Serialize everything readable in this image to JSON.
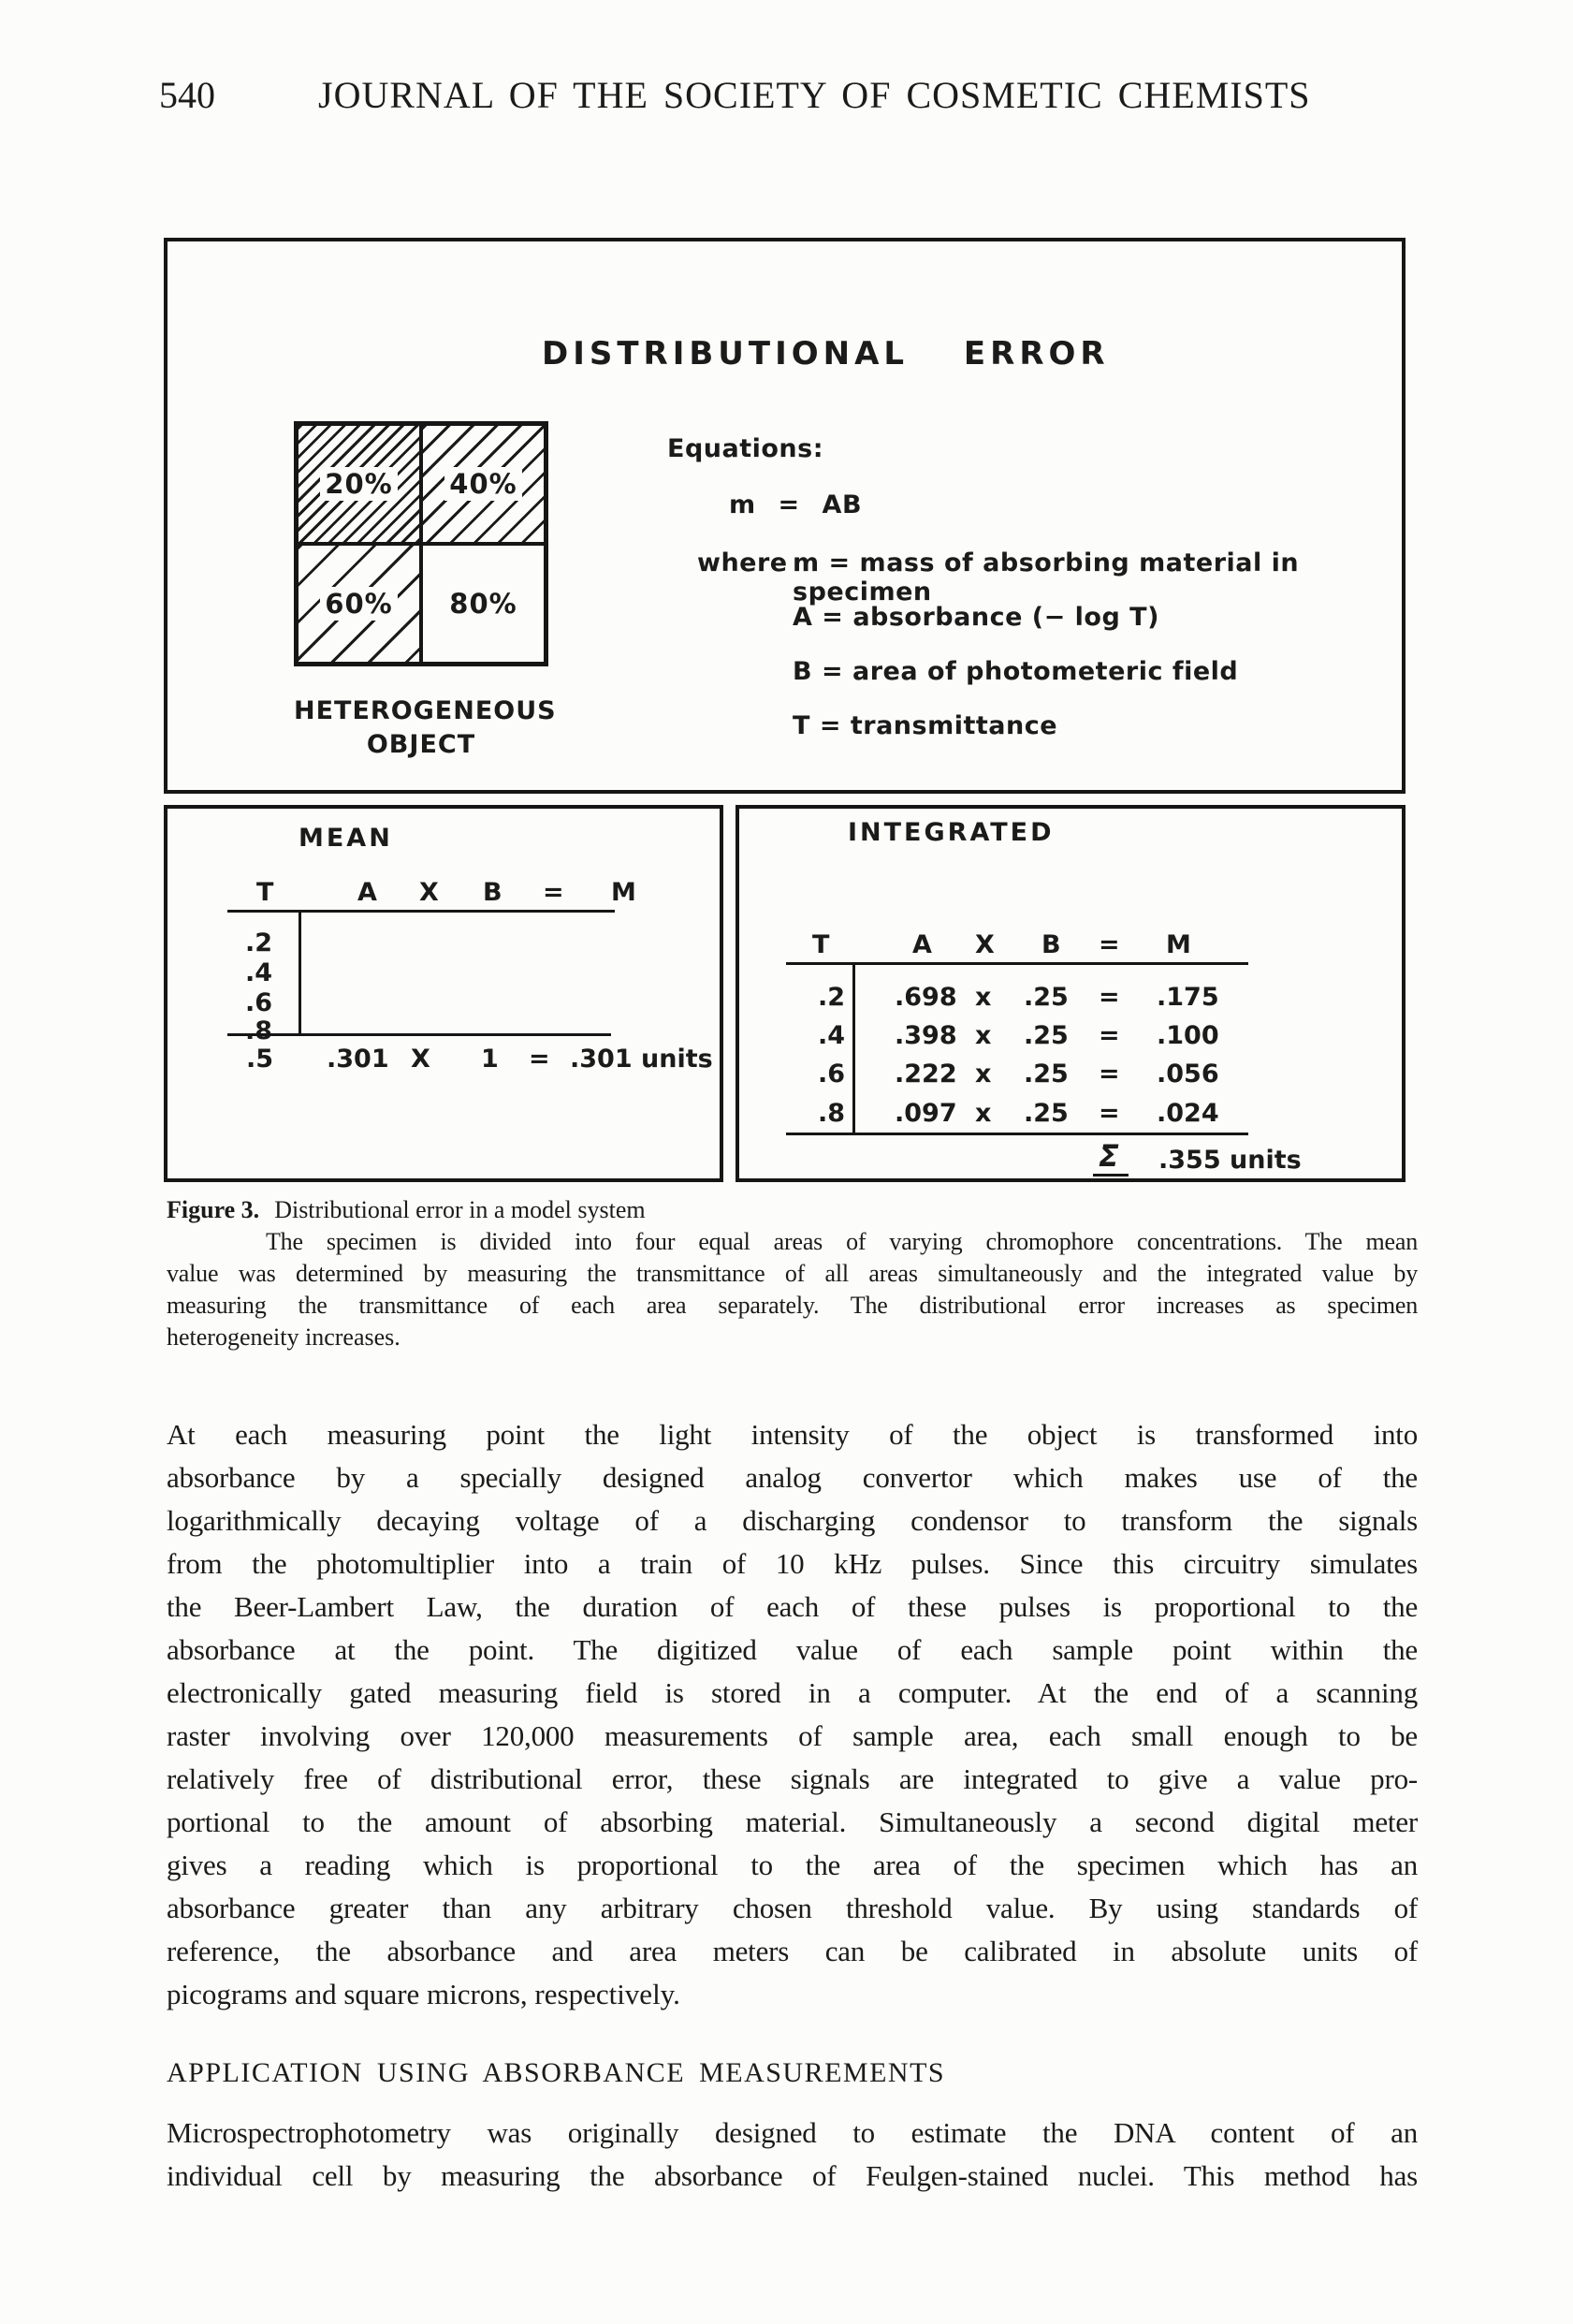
{
  "header": {
    "page_number": "540",
    "journal": "JOURNAL OF THE SOCIETY OF COSMETIC CHEMISTS"
  },
  "figure": {
    "title": "DISTRIBUTIONAL ERROR",
    "object": {
      "quadrant_labels": [
        "20%",
        "40%",
        "60%",
        "80%"
      ],
      "label_line1": "HETEROGENEOUS",
      "label_line2": "OBJECT"
    },
    "equations": {
      "heading": "Equations:",
      "main": "m = AB",
      "where_word": "where",
      "defs": [
        "m = mass of absorbing material in specimen",
        "A = absorbance (− log T)",
        "B = area of photometeric field",
        "T = transmittance"
      ]
    },
    "mean": {
      "heading": "MEAN",
      "columns": [
        "T",
        "A",
        "X",
        "B",
        "=",
        "M"
      ],
      "t_values": [
        ".2",
        ".4",
        ".6",
        ".8"
      ],
      "result": [
        ".5",
        ".301",
        "X",
        "1",
        "=",
        ".301 units"
      ]
    },
    "integrated": {
      "heading": "INTEGRATED",
      "columns": [
        "T",
        "A",
        "X",
        "B",
        "=",
        "M"
      ],
      "rows": [
        [
          ".2",
          ".698",
          "x",
          ".25",
          "=",
          ".175"
        ],
        [
          ".4",
          ".398",
          "x",
          ".25",
          "=",
          ".100"
        ],
        [
          ".6",
          ".222",
          "x",
          ".25",
          "=",
          ".056"
        ],
        [
          ".8",
          ".097",
          "x",
          ".25",
          "=",
          ".024"
        ]
      ],
      "sum_symbol": "Σ",
      "sum_value": ".355 units"
    }
  },
  "caption": {
    "fig_label": "Figure 3.",
    "fig_title": "Distributional error in a model system",
    "lines": [
      "The specimen is divided into four equal areas of varying chromophore concentrations. The mean",
      "value was determined by measuring the transmittance of all areas simultaneously and the integrated value by",
      "measuring the transmittance of each area separately. The distributional error increases as specimen",
      "heterogeneity increases."
    ]
  },
  "body": {
    "lines": [
      "At each measuring point the light intensity of the object is transformed into",
      "absorbance by a specially designed analog convertor which makes use of the",
      "logarithmically decaying voltage of a discharging condensor to transform the signals",
      "from the photomultiplier into a train of 10 kHz pulses. Since this circuitry simulates",
      "the Beer-Lambert Law, the duration of each of these pulses is proportional to the",
      "absorbance at the point. The digitized value of each sample point within the",
      "electronically gated measuring field is stored in a computer. At the end of a scanning",
      "raster involving over 120,000 measurements of sample area, each small enough to be",
      "relatively free of distributional error, these signals are integrated to give a value pro-",
      "portional to the amount of absorbing material. Simultaneously a second digital meter",
      "gives a reading which is proportional to the area of the specimen which has an",
      "absorbance greater than any arbitrary chosen threshold value. By using standards of",
      "reference, the absorbance and area meters can be calibrated in absolute units of",
      "picograms and square microns, respectively."
    ]
  },
  "section": {
    "heading": "APPLICATION USING ABSORBANCE MEASUREMENTS",
    "lines": [
      "Microspectrophotometry was originally designed to estimate the DNA content of an",
      "individual cell by measuring the absorbance of Feulgen-stained nuclei. This method has"
    ]
  }
}
